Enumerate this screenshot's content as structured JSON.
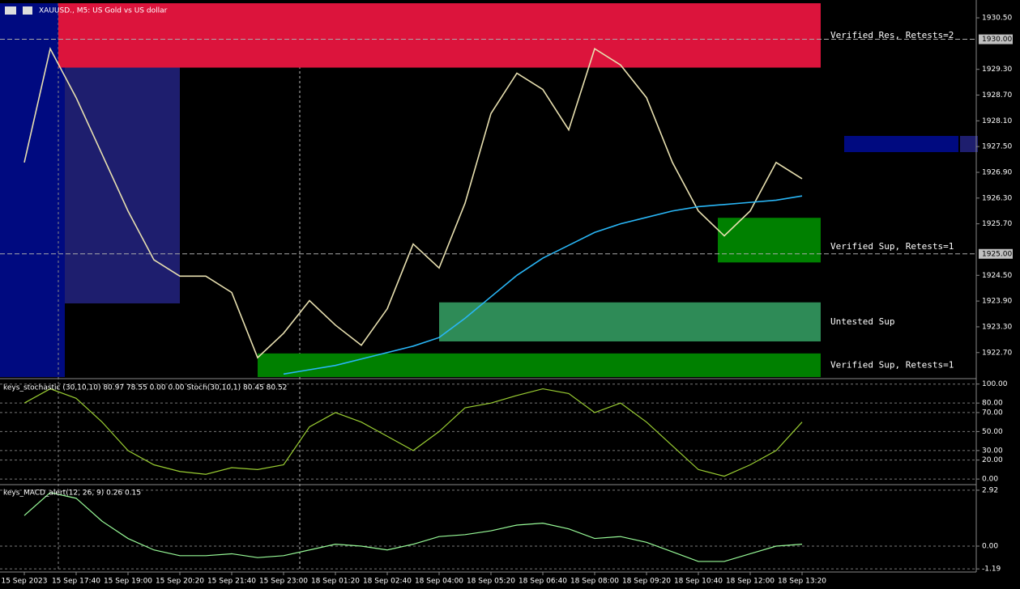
{
  "chart_data": [
    {
      "type": "line",
      "title": "XAUUSD., M5:  US Gold vs US dollar",
      "categories": [
        "15 Sep 2023",
        null,
        "15 Sep 17:40",
        null,
        "15 Sep 19:00",
        null,
        "15 Sep 20:20",
        null,
        "15 Sep 21:40",
        null,
        "15 Sep 23:00",
        null,
        "18 Sep 01:20",
        null,
        "18 Sep 02:40",
        null,
        "18 Sep 04:00",
        null,
        "18 Sep 05:20",
        null,
        "18 Sep 06:40",
        null,
        "18 Sep 08:00",
        null,
        "18 Sep 09:20",
        null,
        "18 Sep 10:40",
        null,
        "18 Sep 12:00",
        null,
        "18 Sep 13:20"
      ],
      "series": [
        {
          "color": "#e8e0b0",
          "values": [
            1927.13,
            1929.78,
            1928.64,
            1927.32,
            1926.0,
            1924.86,
            1924.48,
            1924.48,
            1924.1,
            1922.58,
            1923.15,
            1923.91,
            1923.34,
            1922.87,
            1923.72,
            1925.23,
            1924.67,
            1926.18,
            1928.27,
            1929.21,
            1928.83,
            1927.89,
            1929.78,
            1929.4,
            1928.64,
            1927.13,
            1926.0,
            1925.42,
            1926.0,
            1927.13,
            1926.75
          ]
        },
        {
          "color": "#29b6f6",
          "values": [
            null,
            null,
            null,
            null,
            null,
            null,
            null,
            null,
            null,
            null,
            1922.2,
            1922.3,
            1922.4,
            1922.55,
            1922.7,
            1922.85,
            1923.05,
            1923.5,
            1924.0,
            1924.5,
            1924.9,
            1925.2,
            1925.5,
            1925.7,
            1925.85,
            1926.0,
            1926.1,
            1926.15,
            1926.2,
            1926.25,
            1926.35
          ]
        }
      ],
      "zones": [
        {
          "label": "Verified Res, Retests=2",
          "range": [
            1929.34,
            1930.84
          ],
          "color": "#dc143c"
        },
        {
          "label": "Verified Sup, Retests=1",
          "range": [
            1924.8,
            1925.84
          ],
          "color": "#008000"
        },
        {
          "label": "Untested Sup",
          "range": [
            1922.96,
            1923.87
          ],
          "color": "#2e8b57"
        },
        {
          "label": "Verified Sup, Retests=1",
          "range": [
            1922.13,
            1922.68
          ],
          "color": "#008000"
        }
      ],
      "price_markers": [
        {
          "value": 1930,
          "label": "1930.00"
        },
        {
          "value": 1925,
          "label": "1925.00"
        }
      ],
      "ylim": [
        1922.13,
        1930.84
      ],
      "yticks": [
        {
          "value": 1930.5,
          "label": "1930.50"
        },
        {
          "value": 1929.3,
          "label": "1929.30"
        },
        {
          "value": 1928.7,
          "label": "1928.70"
        },
        {
          "value": 1928.1,
          "label": "1928.10"
        },
        {
          "value": 1927.5,
          "label": "1927.50"
        },
        {
          "value": 1926.9,
          "label": "1926.90"
        },
        {
          "value": 1926.3,
          "label": "1926.30"
        },
        {
          "value": 1925.7,
          "label": "1925.70"
        },
        {
          "value": 1924.5,
          "label": "1924.50"
        },
        {
          "value": 1923.9,
          "label": "1923.90"
        },
        {
          "value": 1923.3,
          "label": "1923.30"
        },
        {
          "value": 1922.7,
          "label": "1922.70"
        }
      ],
      "grid": false
    },
    {
      "type": "line",
      "title": "keys_stochastic (30,10,10) 80.97 78.55 0.00 0.00 Stoch(30,10,1) 80.45 80.52",
      "series": [
        {
          "color": "#9acd32",
          "values": [
            80,
            95,
            85,
            60,
            30,
            15,
            8,
            5,
            12,
            10,
            15,
            55,
            70,
            60,
            45,
            30,
            50,
            75,
            80,
            88,
            95,
            90,
            70,
            80,
            60,
            35,
            10,
            3,
            15,
            30,
            60
          ]
        }
      ],
      "ylim": [
        -5,
        104
      ],
      "yticks": [
        {
          "value": 100,
          "label": "100.00"
        },
        {
          "value": 80,
          "label": "80.00"
        },
        {
          "value": 70,
          "label": "70.00"
        },
        {
          "value": 50,
          "label": "50.00"
        },
        {
          "value": 30,
          "label": "30.00"
        },
        {
          "value": 20,
          "label": "20.00"
        },
        {
          "value": 0,
          "label": "0.00"
        }
      ],
      "grid": true
    },
    {
      "type": "line",
      "title": "keys_MACD_alert(12, 26, 9) 0.26 0.15",
      "series": [
        {
          "color": "#98fb98",
          "values": [
            1.6,
            2.8,
            2.5,
            1.3,
            0.4,
            -0.2,
            -0.5,
            -0.5,
            -0.4,
            -0.6,
            -0.5,
            -0.2,
            0.1,
            0.0,
            -0.2,
            0.1,
            0.5,
            0.6,
            0.8,
            1.1,
            1.2,
            0.9,
            0.4,
            0.5,
            0.2,
            -0.3,
            -0.8,
            -0.8,
            -0.4,
            0.0,
            0.1
          ]
        }
      ],
      "ylim": [
        -1.31,
        3.17
      ],
      "yticks": [
        2.92,
        {
          "value": 0,
          "label": "0.00"
        },
        -1.19
      ],
      "grid": true
    }
  ]
}
